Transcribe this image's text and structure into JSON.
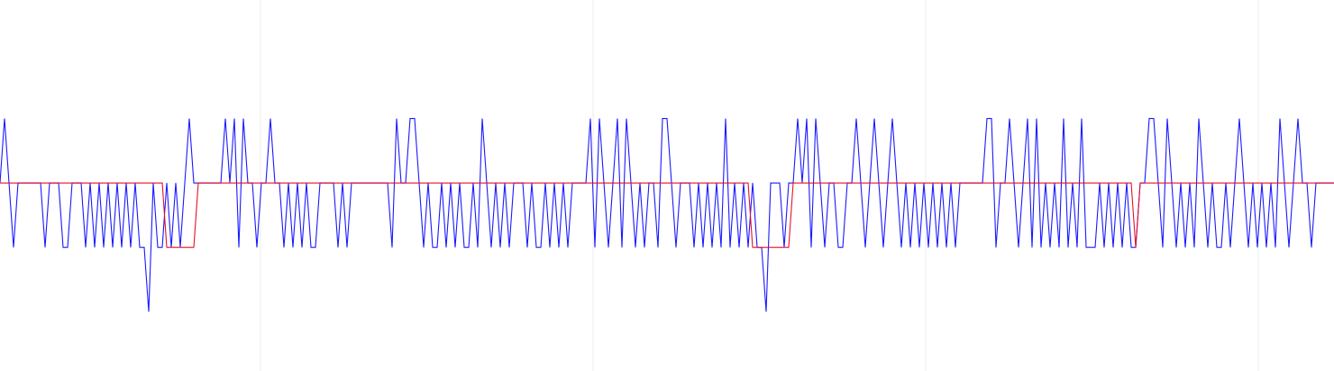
{
  "chart_data": {
    "type": "line",
    "xlim": [
      0,
      296
    ],
    "ylim": [
      -2.92,
      2.84
    ],
    "xticks": [
      57.8,
      131.6,
      205.4,
      279.2
    ],
    "grid": true,
    "x": null,
    "series": [
      {
        "color": "#1a1aff",
        "values": [
          0,
          1,
          0,
          -1,
          0,
          0,
          0,
          0,
          0,
          0,
          -1,
          0,
          0,
          0,
          -1,
          -1,
          0,
          0,
          0,
          -1,
          0,
          -1,
          0,
          -1,
          0,
          -1,
          0,
          -1,
          0,
          -1,
          0,
          -1,
          -1,
          -2,
          0,
          -1,
          -1,
          0,
          -1,
          0,
          -1,
          0,
          1,
          0,
          0,
          0,
          0,
          0,
          0,
          0,
          1,
          0,
          1,
          -1,
          1,
          0,
          0,
          -1,
          0,
          0,
          1,
          0,
          0,
          -1,
          0,
          -1,
          0,
          -1,
          0,
          -1,
          -1,
          0,
          0,
          0,
          0,
          -1,
          0,
          -1,
          0,
          0,
          0,
          0,
          0,
          0,
          0,
          0,
          0,
          -1,
          1,
          0,
          0,
          1,
          1,
          0,
          -1,
          0,
          -1,
          -1,
          0,
          -1,
          0,
          -1,
          0,
          -1,
          -1,
          0,
          -1,
          1,
          0,
          -1,
          0,
          -1,
          0,
          -1,
          0,
          0,
          0,
          -1,
          0,
          -1,
          -1,
          0,
          -1,
          0,
          -1,
          0,
          -1,
          0,
          0,
          0,
          0,
          1,
          -1,
          1,
          0,
          -1,
          0,
          1,
          -1,
          1,
          0,
          -1,
          0,
          -1,
          0,
          0,
          -1,
          1,
          1,
          0,
          -1,
          0,
          0,
          0,
          -1,
          0,
          -1,
          0,
          -1,
          0,
          -1,
          1,
          -1,
          0,
          -1,
          0,
          -1,
          0,
          -1,
          -1,
          -2,
          0,
          0,
          0,
          -1,
          0,
          0,
          1,
          0,
          1,
          -1,
          1,
          0,
          -1,
          0,
          0,
          -1,
          -1,
          0,
          0,
          1,
          0,
          -1,
          0,
          1,
          0,
          -1,
          0,
          1,
          0,
          -1,
          0,
          -1,
          0,
          -1,
          0,
          -1,
          0,
          -1,
          0,
          -1,
          0,
          -1,
          0,
          0,
          0,
          0,
          0,
          0,
          1,
          1,
          -1,
          0,
          0,
          1,
          0,
          -1,
          0,
          1,
          -1,
          1,
          -1,
          0,
          -1,
          0,
          -1,
          1,
          -1,
          0,
          -1,
          1,
          -1,
          -1,
          -1,
          0,
          -1,
          0,
          -1,
          0,
          -1,
          0,
          -1,
          -1,
          0,
          0,
          1,
          1,
          0,
          -1,
          1,
          0,
          -1,
          0,
          -1,
          0,
          -1,
          1,
          0,
          -1,
          0,
          -1,
          -1,
          0,
          -1,
          0,
          1,
          0,
          -1,
          0,
          -1,
          0,
          -1,
          0,
          -1,
          1,
          0,
          -1,
          0,
          1,
          0,
          0,
          -1,
          0,
          0,
          0,
          0,
          0
        ]
      },
      {
        "color": "#e8102a",
        "values": [
          0,
          0,
          0,
          0,
          0,
          0,
          0,
          0,
          0,
          0,
          0,
          0,
          0,
          0,
          0,
          0,
          0,
          0,
          0,
          0,
          0,
          0,
          0,
          0,
          0,
          0,
          0,
          0,
          0,
          0,
          0,
          0,
          0,
          0,
          0,
          0,
          0,
          -1,
          -1,
          -1,
          -1,
          -1,
          -1,
          -1,
          0,
          0,
          0,
          0,
          0,
          0,
          0,
          0,
          0,
          0,
          0,
          0,
          0,
          0,
          0,
          0,
          0,
          0,
          0,
          0,
          0,
          0,
          0,
          0,
          0,
          0,
          0,
          0,
          0,
          0,
          0,
          0,
          0,
          0,
          0,
          0,
          0,
          0,
          0,
          0,
          0,
          0,
          0,
          0,
          0,
          0,
          0,
          0,
          0,
          0,
          0,
          0,
          0,
          0,
          0,
          0,
          0,
          0,
          0,
          0,
          0,
          0,
          0,
          0,
          0,
          0,
          0,
          0,
          0,
          0,
          0,
          0,
          0,
          0,
          0,
          0,
          0,
          0,
          0,
          0,
          0,
          0,
          0,
          0,
          0,
          0,
          0,
          0,
          0,
          0,
          0,
          0,
          0,
          0,
          0,
          0,
          0,
          0,
          0,
          0,
          0,
          0,
          0,
          0,
          0,
          0,
          0,
          0,
          0,
          0,
          0,
          0,
          0,
          0,
          0,
          0,
          0,
          0,
          0,
          0,
          0,
          0,
          0,
          -1,
          -1,
          -1,
          -1,
          -1,
          -1,
          -1,
          -1,
          -1,
          0,
          0,
          0,
          0,
          0,
          0,
          0,
          0,
          0,
          0,
          0,
          0,
          0,
          0,
          0,
          0,
          0,
          0,
          0,
          0,
          0,
          0,
          0,
          0,
          0,
          0,
          0,
          0,
          0,
          0,
          0,
          0,
          0,
          0,
          0,
          0,
          0,
          0,
          0,
          0,
          0,
          0,
          0,
          0,
          0,
          0,
          0,
          0,
          0,
          0,
          0,
          0,
          0,
          0,
          0,
          0,
          0,
          0,
          0,
          0,
          0,
          0,
          0,
          0,
          0,
          0,
          0,
          0,
          0,
          0,
          0,
          0,
          0,
          0,
          0,
          0,
          -1,
          0,
          0,
          0,
          0,
          0,
          0,
          0,
          0,
          0,
          0,
          0,
          0,
          0,
          0,
          0,
          0,
          0,
          0,
          0,
          0,
          0,
          0,
          0,
          0,
          0,
          0,
          0,
          0,
          0,
          0,
          0,
          0,
          0,
          0,
          0,
          0,
          0,
          0,
          0,
          0,
          0,
          0,
          0,
          0
        ]
      }
    ]
  }
}
